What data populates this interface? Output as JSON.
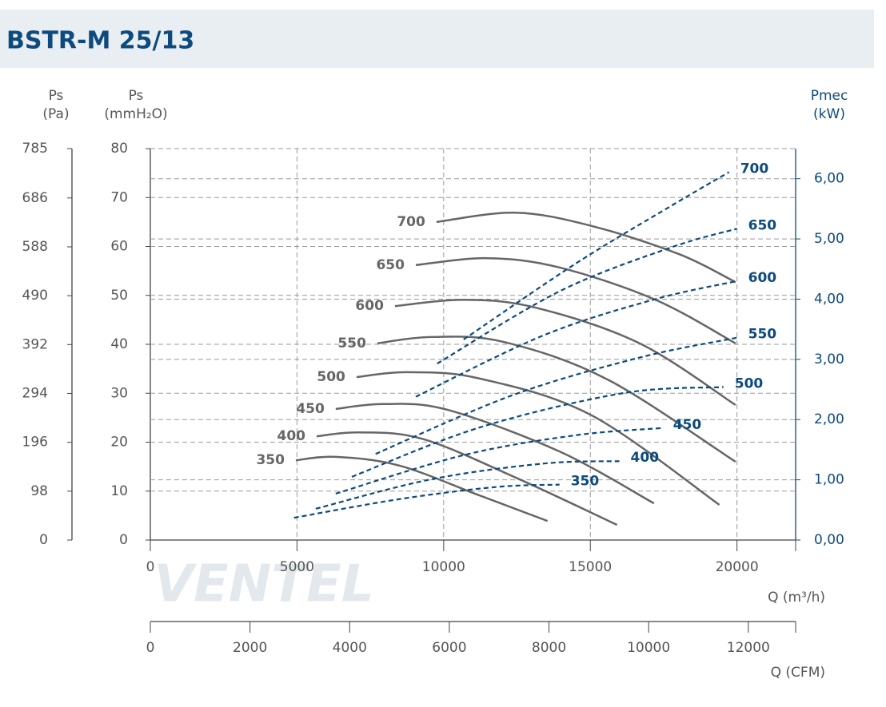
{
  "chart_data": {
    "type": "line",
    "title": "BSTR-M 25/13",
    "watermark": "VENTEL",
    "pa_label": [
      "Ps",
      "(Pa)"
    ],
    "y_label": [
      "Ps",
      "(mmH₂O)"
    ],
    "y2_label": [
      "Pmec",
      "(kW)"
    ],
    "x_label": "Q (m³/h)",
    "x2_label": "Q (CFM)",
    "xlim": [
      0,
      22000
    ],
    "xticks": [
      0,
      5000,
      10000,
      15000,
      20000
    ],
    "x2lim": [
      0,
      12950
    ],
    "x2ticks": [
      0,
      2000,
      4000,
      6000,
      8000,
      10000,
      12000
    ],
    "ylim": [
      0,
      80
    ],
    "yticks": [
      0,
      10,
      20,
      30,
      40,
      50,
      60,
      70,
      80
    ],
    "pa_ylim": [
      0,
      785
    ],
    "pa_yticks": [
      0,
      98,
      196,
      294,
      392,
      490,
      588,
      686,
      785
    ],
    "y2lim": [
      0,
      6.5
    ],
    "y2ticks": [
      {
        "value": 0,
        "label": "0,00"
      },
      {
        "value": 1,
        "label": "1,00"
      },
      {
        "value": 2,
        "label": "2,00"
      },
      {
        "value": 3,
        "label": "3,00"
      },
      {
        "value": 4,
        "label": "4,00"
      },
      {
        "value": 5,
        "label": "5,00"
      },
      {
        "value": 6,
        "label": "6,00"
      }
    ],
    "grid": true,
    "series": [
      {
        "name": "700",
        "color": "#666666",
        "axis": "y",
        "dashed": false,
        "x": [
          9755,
          12450,
          15040,
          18040,
          19950
        ],
        "values": [
          65.0,
          66.9,
          64.2,
          58.4,
          52.7
        ]
      },
      {
        "name": "650",
        "color": "#666666",
        "axis": "y",
        "dashed": false,
        "x": [
          9050,
          11500,
          13950,
          17220,
          19950
        ],
        "values": [
          56.2,
          57.6,
          55.7,
          49.1,
          40.2
        ]
      },
      {
        "name": "600",
        "color": "#666666",
        "axis": "y",
        "dashed": false,
        "x": [
          8340,
          10680,
          13130,
          16680,
          19950
        ],
        "values": [
          47.8,
          49.1,
          47.5,
          40.2,
          27.6
        ]
      },
      {
        "name": "550",
        "color": "#666666",
        "axis": "y",
        "dashed": false,
        "x": [
          7740,
          9590,
          12040,
          15590,
          19950
        ],
        "values": [
          40.2,
          41.5,
          40.5,
          32.8,
          16.0
        ]
      },
      {
        "name": "500",
        "color": "#666666",
        "axis": "y",
        "dashed": false,
        "x": [
          7030,
          8770,
          11230,
          15040,
          19400
        ],
        "values": [
          33.3,
          34.3,
          33.0,
          25.5,
          7.2
        ]
      },
      {
        "name": "450",
        "color": "#666666",
        "axis": "y",
        "dashed": false,
        "x": [
          6320,
          7960,
          10140,
          13950,
          17170
        ],
        "values": [
          26.8,
          27.8,
          26.6,
          18.1,
          7.5
        ]
      },
      {
        "name": "400",
        "color": "#666666",
        "axis": "y",
        "dashed": false,
        "x": [
          5670,
          7140,
          9320,
          12590,
          15910
        ],
        "values": [
          21.2,
          22.0,
          20.6,
          12.4,
          3.1
        ]
      },
      {
        "name": "350",
        "color": "#666666",
        "axis": "y",
        "dashed": false,
        "x": [
          4960,
          6320,
          8500,
          11230,
          13540
        ],
        "values": [
          16.3,
          17.0,
          15.2,
          9.1,
          3.9
        ]
      },
      {
        "name": "700",
        "color": "#0d4a7e",
        "axis": "y2",
        "dashed": true,
        "x": [
          10680,
          14500,
          17760,
          19730
        ],
        "values": [
          3.33,
          4.59,
          5.55,
          6.11
        ]
      },
      {
        "name": "650",
        "color": "#0d4a7e",
        "axis": "y2",
        "dashed": true,
        "x": [
          9780,
          13950,
          17760,
          20000
        ],
        "values": [
          2.93,
          4.13,
          4.86,
          5.17
        ]
      },
      {
        "name": "600",
        "color": "#0d4a7e",
        "axis": "y2",
        "dashed": true,
        "x": [
          9050,
          13410,
          17220,
          20000
        ],
        "values": [
          2.38,
          3.4,
          4.0,
          4.3
        ]
      },
      {
        "name": "550",
        "color": "#0d4a7e",
        "axis": "y2",
        "dashed": true,
        "x": [
          7680,
          12320,
          16680,
          20000
        ],
        "values": [
          1.43,
          2.4,
          3.03,
          3.36
        ]
      },
      {
        "name": "500",
        "color": "#0d4a7e",
        "axis": "y2",
        "dashed": true,
        "x": [
          6870,
          11230,
          16130,
          19540
        ],
        "values": [
          1.05,
          1.87,
          2.44,
          2.54
        ]
      },
      {
        "name": "450",
        "color": "#0d4a7e",
        "axis": "y2",
        "dashed": true,
        "x": [
          6320,
          10680,
          14500,
          17440
        ],
        "values": [
          0.77,
          1.41,
          1.74,
          1.86
        ]
      },
      {
        "name": "400",
        "color": "#0d4a7e",
        "axis": "y2",
        "dashed": true,
        "x": [
          5640,
          9590,
          13410,
          15990
        ],
        "values": [
          0.52,
          1.01,
          1.27,
          1.31
        ]
      },
      {
        "name": "350",
        "color": "#0d4a7e",
        "axis": "y2",
        "dashed": true,
        "x": [
          4900,
          8500,
          11770,
          13950
        ],
        "values": [
          0.37,
          0.68,
          0.88,
          0.92
        ]
      }
    ]
  }
}
